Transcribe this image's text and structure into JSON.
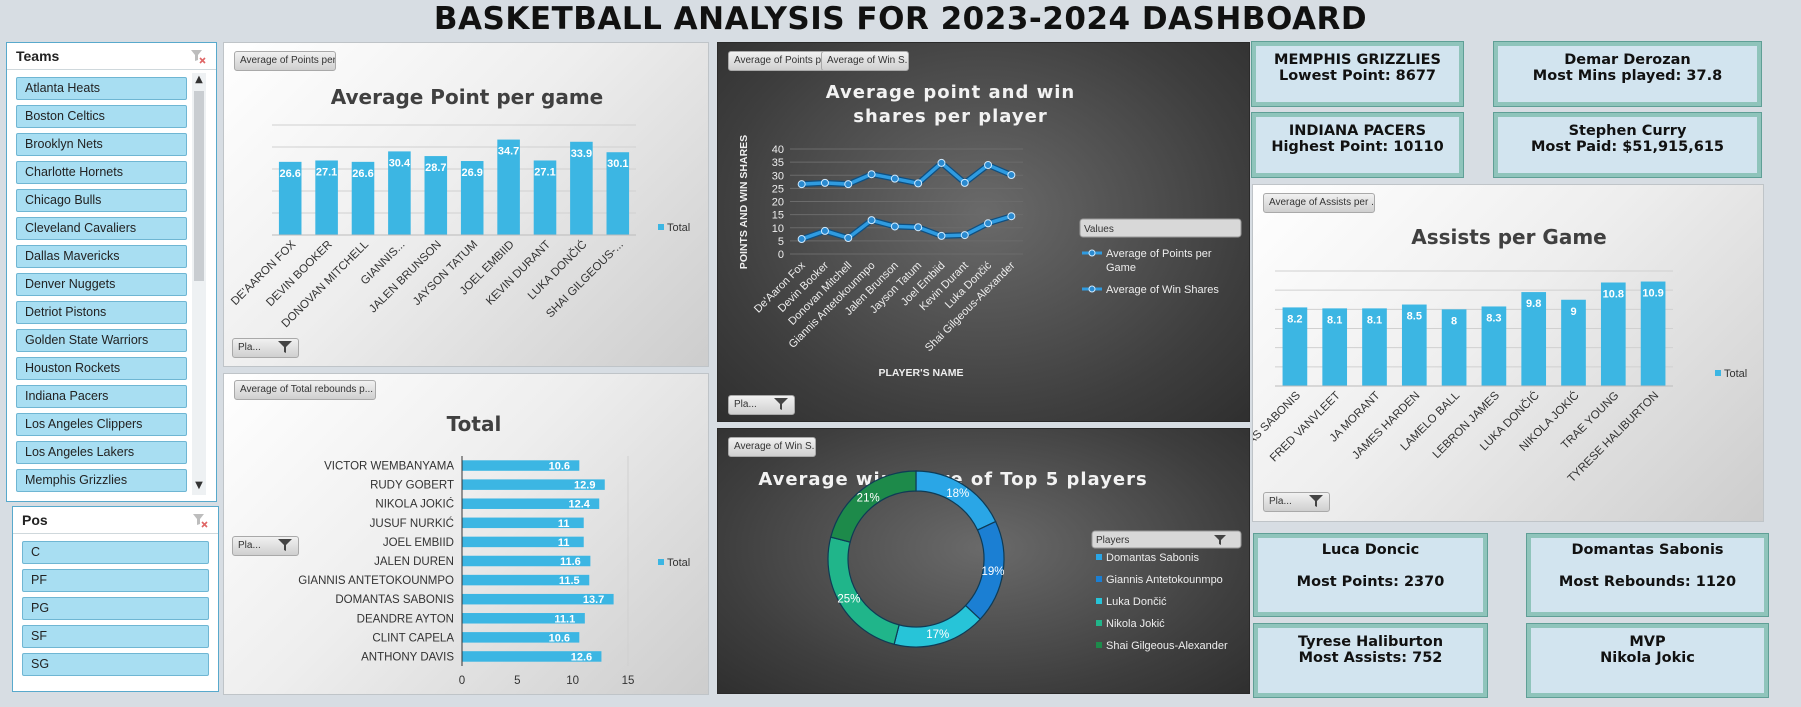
{
  "title": "BASKETBALL ANALYSIS FOR 2023-2024 DASHBOARD",
  "colors": {
    "bar": "#3cb6e3",
    "card_bg": "#d2e4ef",
    "card_border": "#8fc4bb",
    "dark_panel": "#3e3e3e",
    "series_dark": "#2b8fd0"
  },
  "teams_slicer": {
    "header": "Teams",
    "items": [
      "Atlanta Heats",
      "Boston Celtics",
      "Brooklyn Nets",
      "Charlotte Hornets",
      "Chicago Bulls",
      "Cleveland Cavaliers",
      "Dallas Mavericks",
      "Denver Nuggets",
      "Detriot Pistons",
      "Golden State  Warriors",
      "Houston Rockets",
      "Indiana Pacers",
      "Los Angeles Clippers",
      "Los Angeles Lakers",
      "Memphis Grizzlies"
    ]
  },
  "pos_slicer": {
    "header": "Pos",
    "items": [
      "C",
      "PF",
      "PG",
      "SF",
      "SG"
    ]
  },
  "points_panel": {
    "field_button": "Average of Points per...",
    "filter_button": "Pla..."
  },
  "rebounds_panel": {
    "field_button": "Average of Total rebounds p...",
    "filter_button": "Pla..."
  },
  "points_wins_panel": {
    "field_button_1": "Average of Points per...",
    "field_button_2": "Average of Win S...",
    "filter_button": "Pla...",
    "legend_title": "Values"
  },
  "winshare_panel": {
    "field_button": "Average of Win S...",
    "legend_title": "Players"
  },
  "assists_panel": {
    "field_button": "Average of Assists per ...",
    "filter_button": "Pla..."
  },
  "chart_data": [
    {
      "type": "bar",
      "title": "Average Point per game",
      "categories": [
        "DE'AARON FOX",
        "DEVIN BOOKER",
        "DONOVAN MITCHELL",
        "GIANNIS...",
        "JALEN BRUNSON",
        "JAYSON TATUM",
        "JOEL EMBIID",
        "KEVIN DURANT",
        "LUKA DONČIĆ",
        "SHAI GILGEOUS-..."
      ],
      "series": [
        {
          "name": "Total",
          "values": [
            26.6,
            27.1,
            26.6,
            30.4,
            28.7,
            26.9,
            34.7,
            27.1,
            33.9,
            30.1
          ]
        }
      ],
      "data_labels": [
        "26.6",
        "27.1",
        "26.6",
        "30.4",
        "28.7",
        "26.9",
        "34.7",
        "27.1",
        "33.9",
        "30.1"
      ],
      "ylim": [
        0,
        40
      ],
      "legend": "right"
    },
    {
      "type": "bar",
      "orientation": "horizontal",
      "title": "Total",
      "categories": [
        "VICTOR WEMBANYAMA",
        "RUDY GOBERT",
        "NIKOLA JOKIĆ",
        "JUSUF NURKIĆ",
        "JOEL EMBIID",
        "JALEN DUREN",
        "GIANNIS ANTETOKOUNMPO",
        "DOMANTAS SABONIS",
        "DEANDRE AYTON",
        "CLINT CAPELA",
        "ANTHONY DAVIS"
      ],
      "series": [
        {
          "name": "Total",
          "values": [
            10.6,
            12.9,
            12.4,
            11,
            11,
            11.6,
            11.5,
            13.7,
            11.1,
            10.6,
            12.6
          ]
        }
      ],
      "data_labels": [
        "10.6",
        "12.9",
        "12.4",
        "11",
        "11",
        "11.6",
        "11.5",
        "13.7",
        "11.1",
        "10.6",
        "12.6"
      ],
      "xlim": [
        0,
        15
      ],
      "x_ticks": [
        "0",
        "5",
        "10",
        "15"
      ],
      "legend": "right"
    },
    {
      "type": "line",
      "title": "Average point and win shares per player",
      "xlabel": "PLAYER'S NAME",
      "ylabel": "POINTS AND WIN SHARES",
      "categories": [
        "De'Aaron Fox",
        "Devin Booker",
        "Donovan Mitchell",
        "Giannis Antetokounmpo",
        "Jalen Brunson",
        "Jayson Tatum",
        "Joel Embiid",
        "Kevin Durant",
        "Luka Dončić",
        "Shai Gilgeous-Alexander"
      ],
      "series": [
        {
          "name": "Average of Points per Game",
          "values": [
            26.6,
            27.1,
            26.6,
            30.4,
            28.7,
            26.9,
            34.7,
            27.1,
            33.9,
            30.1
          ]
        },
        {
          "name": "Average of Win Shares",
          "values": [
            5.7,
            8.8,
            6.1,
            12.9,
            10.5,
            10.2,
            6.9,
            7.2,
            11.7,
            14.4
          ]
        }
      ],
      "y_ticks": [
        "0",
        "5",
        "10",
        "15",
        "20",
        "25",
        "30",
        "35",
        "40"
      ],
      "ylim": [
        0,
        40
      ],
      "legend": "right"
    },
    {
      "type": "pie",
      "subtype": "doughnut",
      "title": "Average win share of Top 5 players",
      "categories": [
        "Domantas Sabonis",
        "Giannis Antetokounmpo",
        "Luka Dončić",
        "Nikola Jokić",
        "Shai Gilgeous-Alexander"
      ],
      "values": [
        18,
        19,
        17,
        25,
        21
      ],
      "data_labels": [
        "18%",
        "19%",
        "17%",
        "25%",
        "21%"
      ],
      "slice_colors": [
        "#2aa6e6",
        "#1b7fd3",
        "#27c4d8",
        "#20b58a",
        "#1d8a4a"
      ],
      "legend": "right"
    },
    {
      "type": "bar",
      "title": "Assists per Game",
      "categories": [
        "DOMANTAS SABONIS",
        "FRED VANVLEET",
        "JA MORANT",
        "JAMES HARDEN",
        "LAMELO BALL",
        "LEBRON JAMES",
        "LUKA DONČIĆ",
        "NIKOLA JOKIĆ",
        "TRAE YOUNG",
        "TYRESE HALIBURTON"
      ],
      "series": [
        {
          "name": "Total",
          "values": [
            8.2,
            8.1,
            8.1,
            8.5,
            8,
            8.3,
            9.8,
            9,
            10.8,
            10.9
          ]
        }
      ],
      "data_labels": [
        "8.2",
        "8.1",
        "8.1",
        "8.5",
        "8",
        "8.3",
        "9.8",
        "9",
        "10.8",
        "10.9"
      ],
      "ylim": [
        0,
        12
      ],
      "legend": "right"
    }
  ],
  "cards": [
    {
      "line1": "MEMPHIS GRIZZLIES",
      "line2": "Lowest Point: 8677"
    },
    {
      "line1": "Demar Derozan",
      "line2": "Most Mins played: 37.8"
    },
    {
      "line1": "INDIANA PACERS",
      "line2": "Highest Point: 10110"
    },
    {
      "line1": "Stephen Curry",
      "line2": "Most Paid: $51,915,615"
    },
    {
      "line1": "Luca Doncic",
      "line2": "Most Points: 2370"
    },
    {
      "line1": "Domantas Sabonis",
      "line2": "Most Rebounds: 1120"
    },
    {
      "line1": "Tyrese Haliburton",
      "line2": "Most Assists: 752"
    },
    {
      "line1": "MVP",
      "line2": "Nikola Jokic"
    }
  ]
}
